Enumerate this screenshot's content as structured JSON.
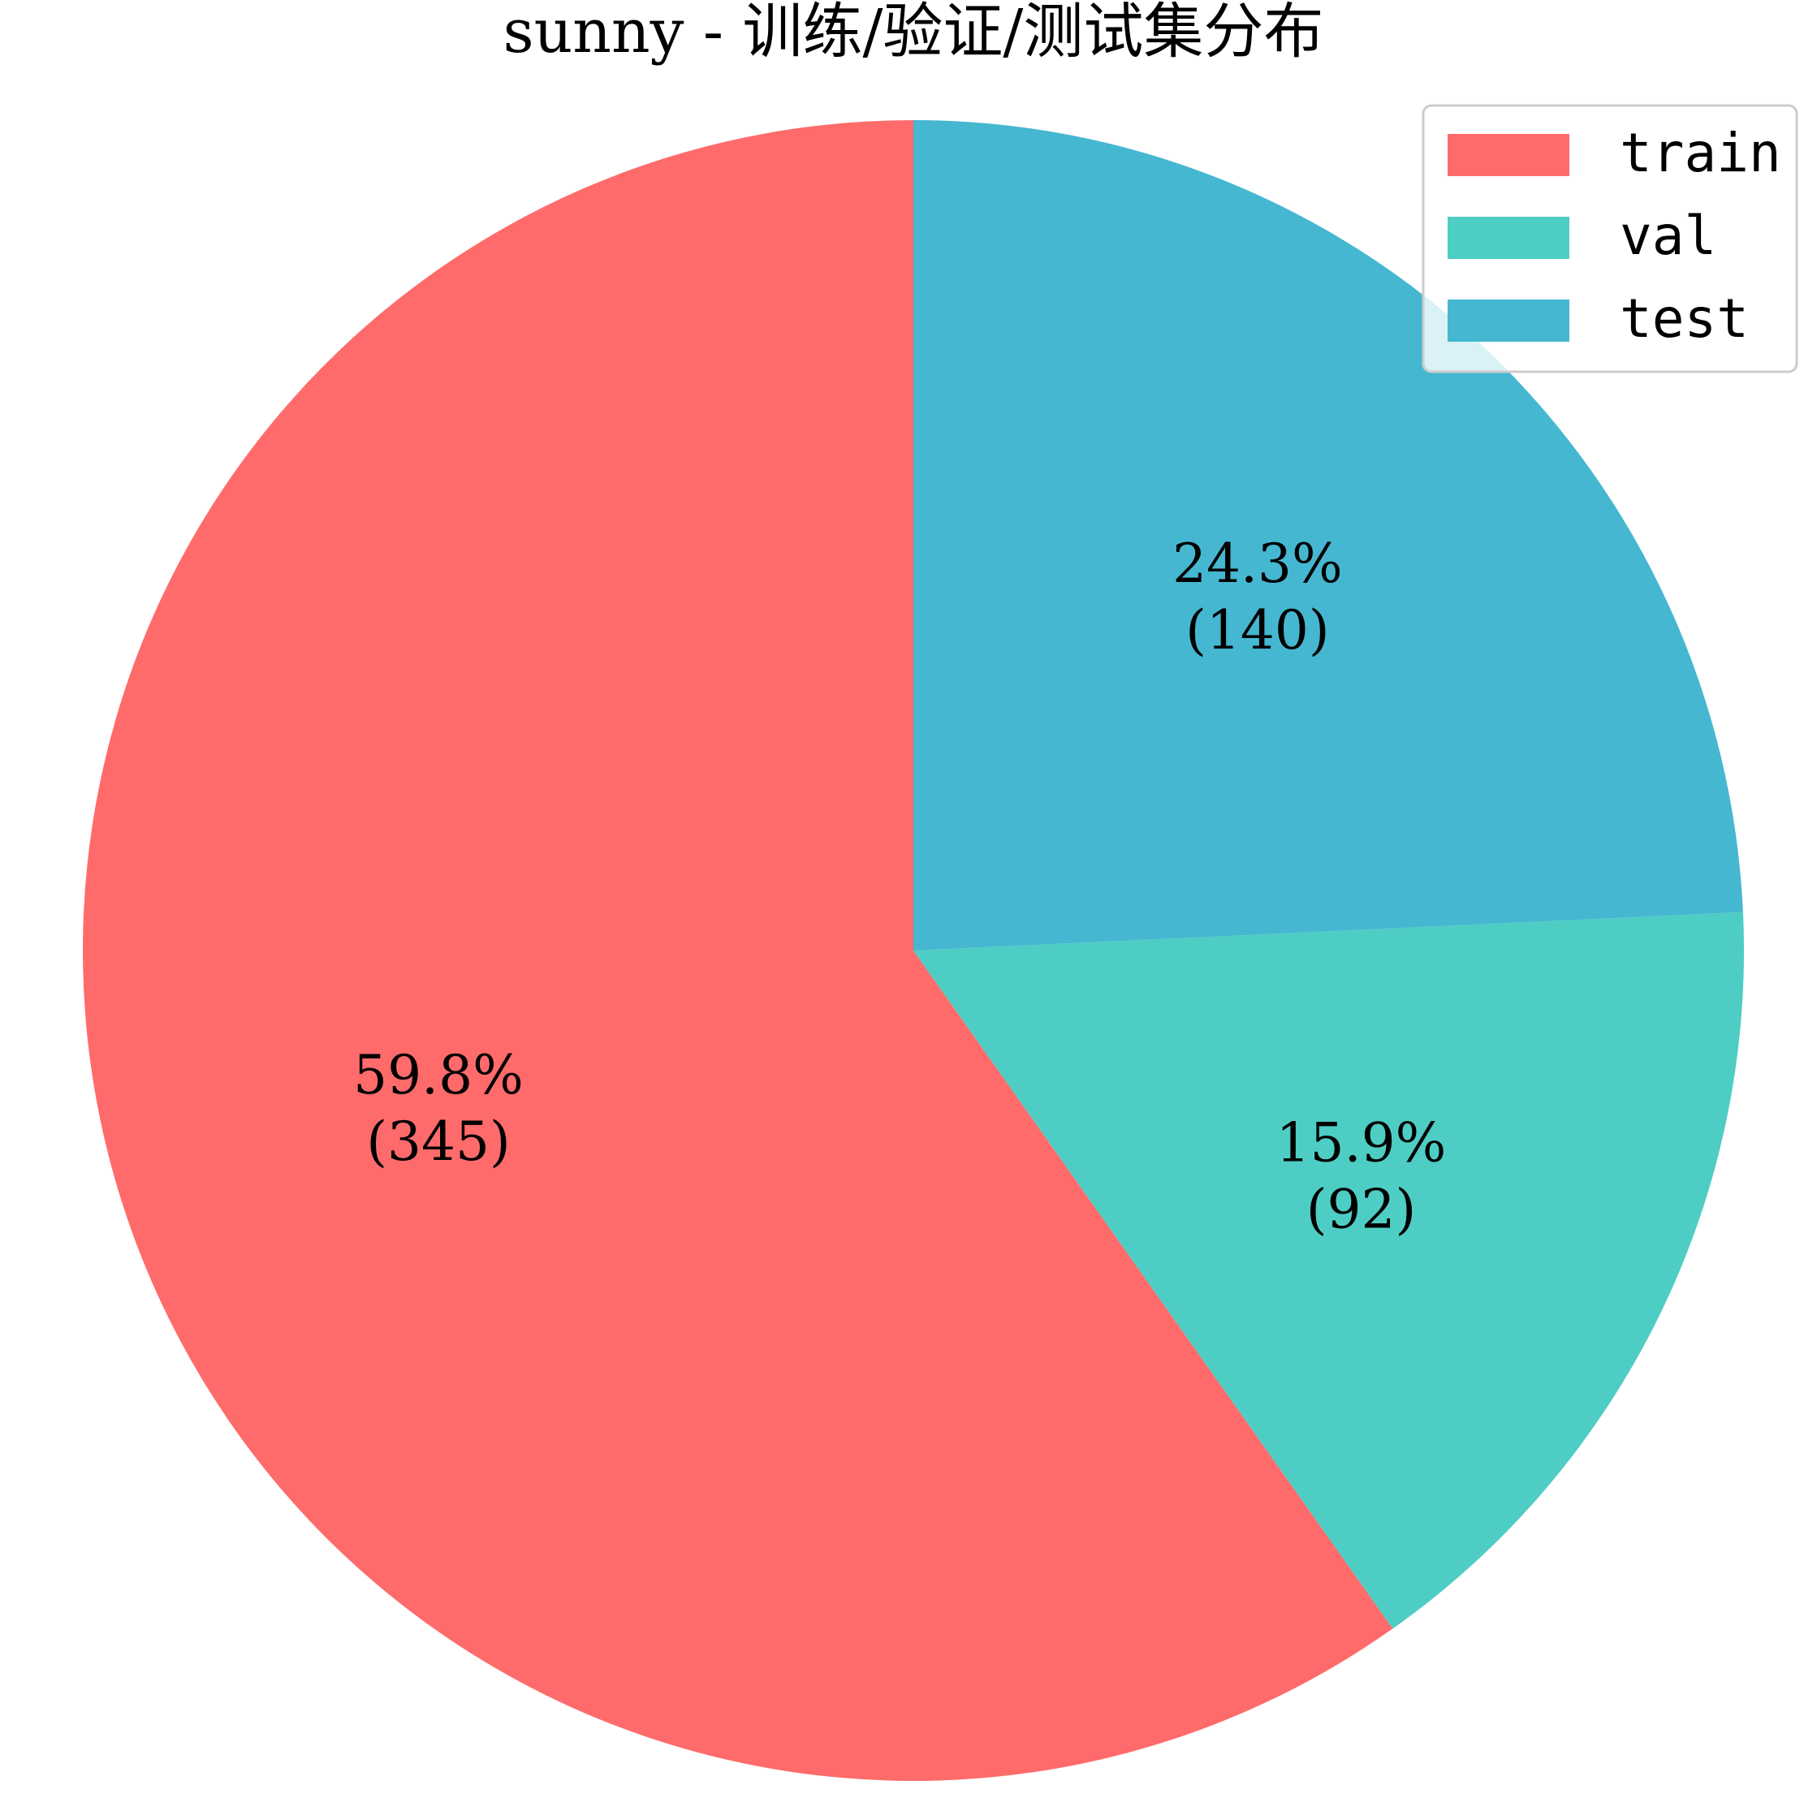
{
  "chart_data": {
    "type": "pie",
    "title": "sunny - 训练/验证/测试集分布",
    "start_angle_deg": 90,
    "direction": "counterclockwise",
    "legend_position": "top-right",
    "slices": [
      {
        "name": "train",
        "value": 345,
        "percent_label": "59.8%",
        "count_label": "(345)",
        "color": "#FF6B6B"
      },
      {
        "name": "val",
        "value": 92,
        "percent_label": "15.9%",
        "count_label": "(92)",
        "color": "#4ECDC4"
      },
      {
        "name": "test",
        "value": 140,
        "percent_label": "24.3%",
        "count_label": "(140)",
        "color": "#45B7D1"
      }
    ]
  }
}
